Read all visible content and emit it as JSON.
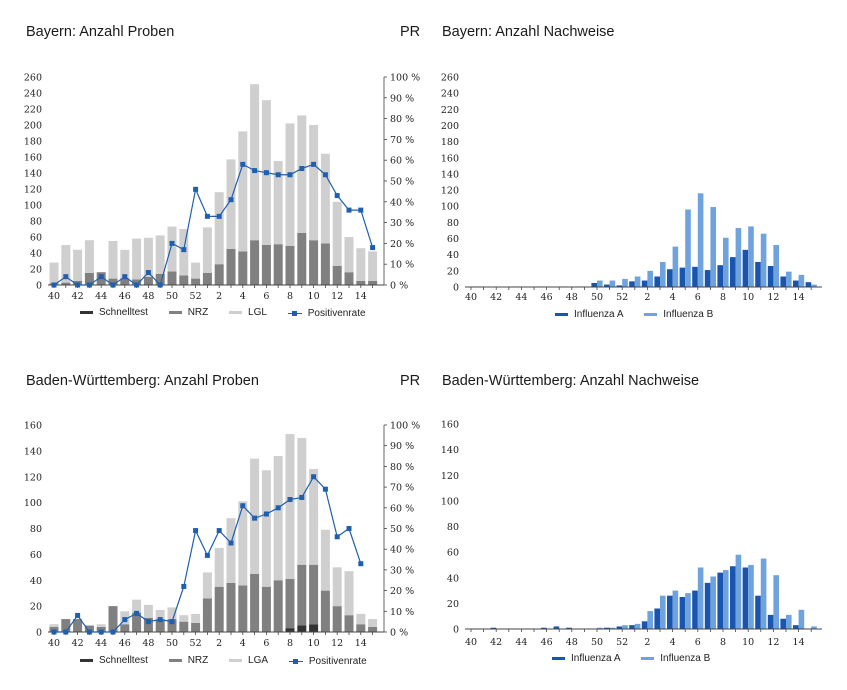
{
  "colors": {
    "schnelltest": "#333333",
    "nrz": "#808080",
    "lab": "#cfcfcf",
    "positivenrate": "#1f5fb0",
    "influenza_a": "#1a55ad",
    "influenza_b": "#6ea3de"
  },
  "chart_data": [
    {
      "id": "bayern_proben",
      "type": "bar+line",
      "title": "Bayern: Anzahl Proben",
      "right_axis_label": "PR",
      "stacked": true,
      "y_ticks": [
        "260",
        "240",
        "220",
        "200",
        "180",
        "160",
        "140",
        "120",
        "100",
        "80",
        "60",
        "40",
        "20",
        "0"
      ],
      "ylim": [
        0,
        260
      ],
      "y2_ticks": [
        "100 %",
        "90 %",
        "80 %",
        "70 %",
        "60 %",
        "50 %",
        "40 %",
        "30 %",
        "20 %",
        "10 %",
        "0 %"
      ],
      "y2lim": [
        0,
        100
      ],
      "x_tick_labels": [
        "40",
        "42",
        "44",
        "46",
        "48",
        "50",
        "52",
        "2",
        "4",
        "6",
        "8",
        "10",
        "12",
        "14"
      ],
      "categories": [
        "40",
        "41",
        "42",
        "43",
        "44",
        "45",
        "46",
        "47",
        "48",
        "49",
        "50",
        "51",
        "52",
        "1",
        "2",
        "3",
        "4",
        "5",
        "6",
        "7",
        "8",
        "9",
        "10",
        "11",
        "12",
        "13",
        "14",
        "15"
      ],
      "series": [
        {
          "name": "Schnelltest",
          "values": [
            0,
            0,
            0,
            0,
            0,
            0,
            0,
            0,
            0,
            0,
            0,
            0,
            0,
            0,
            0,
            0,
            0,
            0,
            0,
            0,
            0,
            0,
            0,
            0,
            0,
            0,
            0,
            0
          ]
        },
        {
          "name": "NRZ",
          "values": [
            2,
            3,
            5,
            15,
            16,
            8,
            8,
            7,
            10,
            14,
            17,
            12,
            8,
            15,
            26,
            45,
            42,
            56,
            50,
            51,
            49,
            65,
            56,
            52,
            24,
            16,
            5,
            5
          ]
        },
        {
          "name": "LGL",
          "values": [
            26,
            47,
            39,
            41,
            0,
            47,
            36,
            51,
            49,
            48,
            56,
            58,
            20,
            57,
            90,
            112,
            150,
            195,
            181,
            104,
            153,
            147,
            144,
            112,
            80,
            44,
            41,
            37
          ]
        },
        {
          "name": "Positivenrate",
          "axis": "right",
          "values": [
            0,
            4,
            0,
            0,
            4,
            0,
            4,
            0,
            6,
            0,
            20,
            17,
            46,
            33,
            33,
            41,
            58,
            55,
            54,
            53,
            53,
            56,
            58,
            53,
            43,
            36,
            36,
            18
          ]
        }
      ],
      "legend": [
        "Schnelltest",
        "NRZ",
        "LGL",
        "Positivenrate"
      ]
    },
    {
      "id": "bayern_nachweise",
      "type": "bar",
      "title": "Bayern: Anzahl Nachweise",
      "stacked": false,
      "y_ticks": [
        "260",
        "240",
        "220",
        "200",
        "180",
        "160",
        "140",
        "120",
        "100",
        "80",
        "60",
        "40",
        "20",
        "0"
      ],
      "ylim": [
        0,
        260
      ],
      "x_tick_labels": [
        "40",
        "42",
        "44",
        "46",
        "48",
        "50",
        "52",
        "2",
        "4",
        "6",
        "8",
        "10",
        "12",
        "14"
      ],
      "categories": [
        "40",
        "41",
        "42",
        "43",
        "44",
        "45",
        "46",
        "47",
        "48",
        "49",
        "50",
        "51",
        "52",
        "1",
        "2",
        "3",
        "4",
        "5",
        "6",
        "7",
        "8",
        "9",
        "10",
        "11",
        "12",
        "13",
        "14",
        "15"
      ],
      "series": [
        {
          "name": "Influenza A",
          "values": [
            0,
            0,
            0,
            0,
            0,
            0,
            0,
            0,
            0,
            0,
            5,
            3,
            2,
            7,
            8,
            13,
            22,
            24,
            25,
            21,
            27,
            37,
            46,
            31,
            26,
            13,
            8,
            6
          ]
        },
        {
          "name": "Influenza B",
          "values": [
            0,
            0,
            0,
            0,
            0,
            0,
            0,
            0,
            0,
            0,
            8,
            8,
            10,
            13,
            20,
            31,
            50,
            96,
            116,
            99,
            61,
            73,
            75,
            66,
            52,
            19,
            15,
            3
          ]
        }
      ],
      "legend": [
        "Influenza A",
        "Influenza B"
      ]
    },
    {
      "id": "bw_proben",
      "type": "bar+line",
      "title": "Baden-Württemberg: Anzahl Proben",
      "right_axis_label": "PR",
      "stacked": true,
      "y_ticks": [
        "160",
        "140",
        "120",
        "100",
        "80",
        "60",
        "40",
        "20",
        "0"
      ],
      "ylim": [
        0,
        160
      ],
      "y2_ticks": [
        "100 %",
        "90 %",
        "80 %",
        "70 %",
        "60 %",
        "50 %",
        "40 %",
        "30 %",
        "20 %",
        "10 %",
        "0 %"
      ],
      "y2lim": [
        0,
        100
      ],
      "x_tick_labels": [
        "40",
        "42",
        "44",
        "46",
        "48",
        "50",
        "52",
        "2",
        "4",
        "6",
        "8",
        "10",
        "12",
        "14"
      ],
      "categories": [
        "40",
        "41",
        "42",
        "43",
        "44",
        "45",
        "46",
        "47",
        "48",
        "49",
        "50",
        "51",
        "52",
        "1",
        "2",
        "3",
        "4",
        "5",
        "6",
        "7",
        "8",
        "9",
        "10",
        "11",
        "12",
        "13",
        "14",
        "15"
      ],
      "series": [
        {
          "name": "Schnelltest",
          "values": [
            0,
            0,
            0,
            0,
            0,
            0,
            0,
            0,
            0,
            0,
            0,
            0,
            0,
            0,
            0,
            0,
            0,
            0,
            0,
            0,
            3,
            5,
            6,
            0,
            0,
            0,
            0,
            0
          ]
        },
        {
          "name": "NRZ",
          "values": [
            4,
            10,
            10,
            5,
            4,
            20,
            6,
            15,
            11,
            10,
            10,
            8,
            7,
            26,
            35,
            38,
            36,
            45,
            35,
            40,
            38,
            47,
            46,
            32,
            20,
            13,
            6,
            4
          ]
        },
        {
          "name": "LGA",
          "values": [
            2,
            0,
            0,
            0,
            2,
            0,
            10,
            10,
            10,
            7,
            9,
            5,
            7,
            20,
            30,
            50,
            65,
            89,
            90,
            96,
            112,
            98,
            74,
            47,
            30,
            34,
            8,
            6
          ]
        },
        {
          "name": "Positivenrate",
          "axis": "right",
          "values": [
            0,
            0,
            8,
            0,
            0,
            0,
            6,
            9,
            5,
            6,
            5,
            22,
            49,
            37,
            49,
            43,
            61,
            55,
            57,
            60,
            64,
            65,
            75,
            69,
            46,
            50,
            33,
            null
          ]
        }
      ],
      "legend": [
        "Schnelltest",
        "NRZ",
        "LGA",
        "Positivenrate"
      ]
    },
    {
      "id": "bw_nachweise",
      "type": "bar",
      "title": "Baden-Württemberg: Anzahl Nachweise",
      "stacked": false,
      "y_ticks": [
        "160",
        "140",
        "120",
        "100",
        "80",
        "60",
        "40",
        "20",
        "0"
      ],
      "ylim": [
        0,
        160
      ],
      "x_tick_labels": [
        "40",
        "42",
        "44",
        "46",
        "48",
        "50",
        "52",
        "2",
        "4",
        "6",
        "8",
        "10",
        "12",
        "14"
      ],
      "categories": [
        "40",
        "41",
        "42",
        "43",
        "44",
        "45",
        "46",
        "47",
        "48",
        "49",
        "50",
        "51",
        "52",
        "1",
        "2",
        "3",
        "4",
        "5",
        "6",
        "7",
        "8",
        "9",
        "10",
        "11",
        "12",
        "13",
        "14",
        "15"
      ],
      "series": [
        {
          "name": "Influenza A",
          "values": [
            0,
            0,
            1,
            0,
            0,
            0,
            1,
            2,
            1,
            0,
            0,
            1,
            2,
            3,
            6,
            16,
            26,
            25,
            30,
            36,
            44,
            49,
            48,
            26,
            11,
            8,
            3,
            0
          ]
        },
        {
          "name": "Influenza B",
          "values": [
            0,
            0,
            0,
            0,
            0,
            0,
            0,
            0,
            0,
            0,
            1,
            1,
            3,
            4,
            14,
            26,
            30,
            28,
            48,
            41,
            46,
            58,
            50,
            55,
            42,
            11,
            15,
            2
          ]
        }
      ],
      "legend": [
        "Influenza A",
        "Influenza B"
      ]
    }
  ]
}
